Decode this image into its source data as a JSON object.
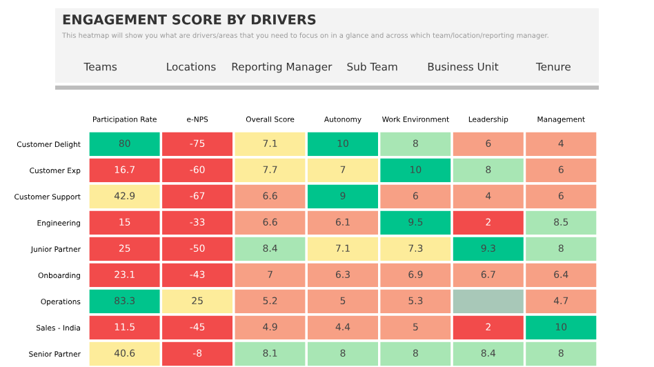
{
  "chart_data": {
    "type": "heatmap",
    "data_labels": true,
    "title": "ENGAGEMENT SCORE BY DRIVERS",
    "subtitle": "This heatmap will show you what are drivers/areas that you need to focus on in a glance and across which team/location/reporting manager.",
    "annotations": [
      "Teams",
      "Locations",
      "Reporting Manager",
      "Sub Team",
      "Business Unit",
      "Tenure"
    ],
    "categories": [
      "Participation Rate",
      "e-NPS",
      "Overall Score",
      "Autonomy",
      "Work Environment",
      "Leadership",
      "Management"
    ],
    "y_categories": [
      "Customer Delight",
      "Customer Exp",
      "Customer Support",
      "Engineering",
      "Junior Partner",
      "Onboarding",
      "Operations",
      "Sales - India",
      "Senior Partner"
    ],
    "cells": [
      [
        80,
        -75,
        7.1,
        10,
        8,
        6,
        4
      ],
      [
        16.7,
        -60,
        7.7,
        7,
        10,
        8,
        6
      ],
      [
        42.9,
        -67,
        6.6,
        9,
        6,
        4,
        6
      ],
      [
        15,
        -33,
        6.6,
        6.1,
        9.5,
        2,
        8.5
      ],
      [
        25,
        -50,
        8.4,
        7.1,
        7.3,
        9.3,
        8
      ],
      [
        23.1,
        -43,
        7,
        6.3,
        6.9,
        6.7,
        6.4
      ],
      [
        83.3,
        25,
        5.2,
        5,
        5.3,
        null,
        4.7
      ],
      [
        11.5,
        -45,
        4.9,
        4.4,
        5,
        2,
        10
      ],
      [
        40.6,
        -8,
        8.1,
        8,
        8,
        8.4,
        8
      ]
    ],
    "colors": [
      [
        "#00c48c",
        "#f24b4b",
        "#fdec9a",
        "#00c48c",
        "#a8e6b4",
        "#f7a085",
        "#f7a085"
      ],
      [
        "#f24b4b",
        "#f24b4b",
        "#fdec9a",
        "#fdec9a",
        "#00c48c",
        "#a8e6b4",
        "#f7a085"
      ],
      [
        "#fdec9a",
        "#f24b4b",
        "#f7a085",
        "#00c48c",
        "#f7a085",
        "#f7a085",
        "#f7a085"
      ],
      [
        "#f24b4b",
        "#f24b4b",
        "#f7a085",
        "#f7a085",
        "#00c48c",
        "#f24b4b",
        "#a8e6b4"
      ],
      [
        "#f24b4b",
        "#f24b4b",
        "#a8e6b4",
        "#fdec9a",
        "#fdec9a",
        "#00c48c",
        "#a8e6b4"
      ],
      [
        "#f24b4b",
        "#f24b4b",
        "#f7a085",
        "#f7a085",
        "#f7a085",
        "#f7a085",
        "#f7a085"
      ],
      [
        "#00c48c",
        "#fdec9a",
        "#f7a085",
        "#f7a085",
        "#f7a085",
        "#a8c8b8",
        "#f7a085"
      ],
      [
        "#f24b4b",
        "#f24b4b",
        "#f7a085",
        "#f7a085",
        "#f7a085",
        "#f24b4b",
        "#00c48c"
      ],
      [
        "#fdec9a",
        "#f24b4b",
        "#a8e6b4",
        "#a8e6b4",
        "#a8e6b4",
        "#a8e6b4",
        "#a8e6b4"
      ]
    ]
  }
}
